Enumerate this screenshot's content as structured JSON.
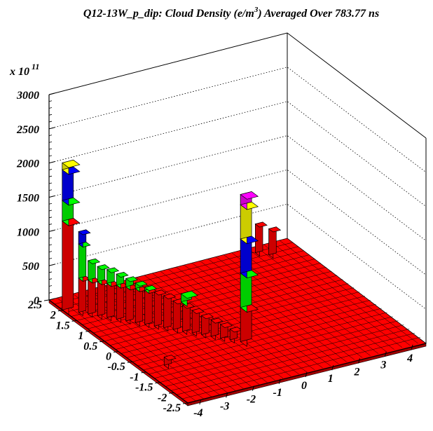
{
  "chart_data": {
    "type": "lego3d",
    "title_main": "Q12-13W_p_dip: Cloud Density (e/m",
    "title_sup": "3",
    "title_tail": ") Averaged Over 783.77 ns",
    "z_multiplier_base": "x 10",
    "z_multiplier_exp": "11",
    "zlim": [
      0,
      3000
    ],
    "z_ticks": [
      "0",
      "500",
      "1000",
      "1500",
      "2000",
      "2500",
      "3000"
    ],
    "y_ticks": [
      "2.5",
      "2",
      "1.5",
      "1",
      "0.5",
      "0",
      "-0.5",
      "-1",
      "-1.5",
      "-2",
      "-2.5"
    ],
    "x_ticks": [
      "-4",
      "-3",
      "-2",
      "-1",
      "0",
      "1",
      "2",
      "3",
      "4"
    ],
    "grid_z": true,
    "floor_color": "#ff0000",
    "palette": [
      "#ff0000",
      "#00ff00",
      "#0000ff",
      "#ffff00",
      "#ff00ff",
      "#1e96c8"
    ],
    "tall_bars": [
      {
        "x": -4.3,
        "y": 1.9,
        "value": 2150,
        "levels": [
          1300,
          1600,
          2050
        ]
      },
      {
        "x": -0.5,
        "y": -0.9,
        "value": 2150,
        "levels": [
          500,
          1000,
          1500,
          2000
        ]
      }
    ],
    "side_bars": [
      {
        "x": -4.0,
        "y": 1.7,
        "value": 1180
      },
      {
        "x": -3.8,
        "y": 1.55,
        "value": 780
      },
      {
        "x": -3.6,
        "y": 1.4,
        "value": 720
      },
      {
        "x": -3.4,
        "y": 1.25,
        "value": 700
      },
      {
        "x": -3.2,
        "y": 1.1,
        "value": 660
      },
      {
        "x": -3.0,
        "y": 0.95,
        "value": 620
      },
      {
        "x": -2.8,
        "y": 0.8,
        "value": 580
      },
      {
        "x": -2.6,
        "y": 0.65,
        "value": 540
      },
      {
        "x": -2.4,
        "y": 0.5,
        "value": 500
      },
      {
        "x": -2.2,
        "y": 0.35,
        "value": 470
      },
      {
        "x": -2.0,
        "y": 0.2,
        "value": 420
      },
      {
        "x": -1.8,
        "y": 0.05,
        "value": 380
      },
      {
        "x": -1.6,
        "y": -0.1,
        "value": 330
      },
      {
        "x": -1.4,
        "y": -0.25,
        "value": 280
      },
      {
        "x": -1.2,
        "y": -0.4,
        "value": 240
      },
      {
        "x": -1.0,
        "y": -0.55,
        "value": 200
      },
      {
        "x": -0.8,
        "y": -0.7,
        "value": 160
      },
      {
        "x": -1.6,
        "y": 0.5,
        "value": 180
      },
      {
        "x": -3.6,
        "y": -1.0,
        "value": 120
      },
      {
        "x": 3.2,
        "y": 2.2,
        "value": 420
      },
      {
        "x": 3.5,
        "y": 2.0,
        "value": 380
      }
    ],
    "cube": {
      "x": -1.4,
      "y": 0.4,
      "value": 280
    }
  }
}
